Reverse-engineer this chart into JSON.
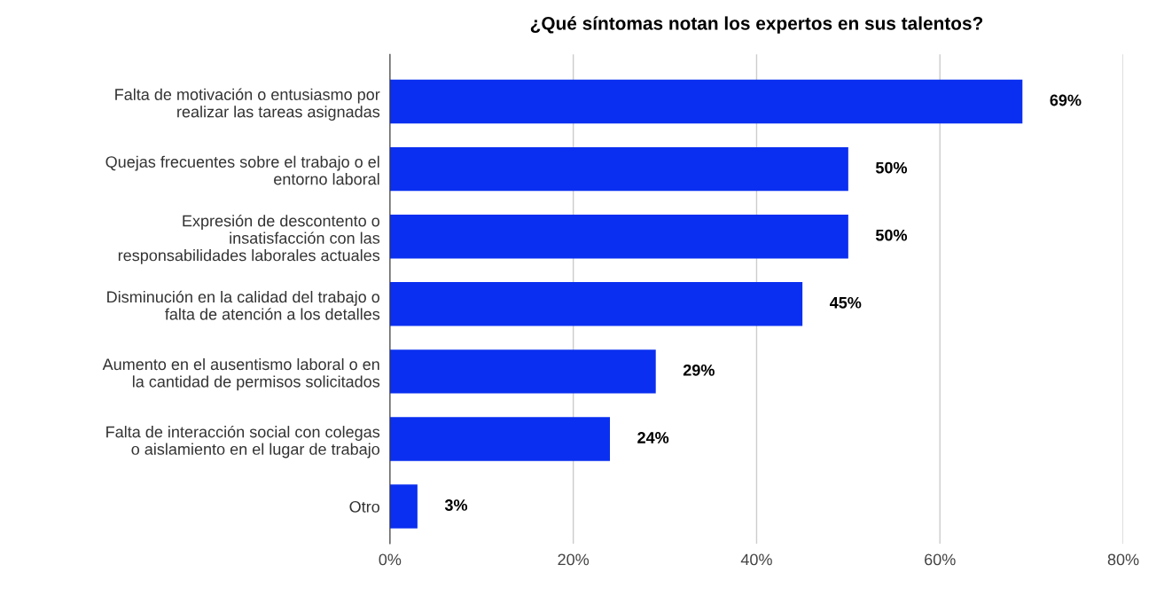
{
  "chart_data": {
    "type": "bar",
    "orientation": "horizontal",
    "title": "¿Qué síntomas notan los expertos en sus talentos?",
    "categories": [
      "Falta de motivación o entusiasmo por\nrealizar las tareas asignadas",
      "Quejas frecuentes sobre el trabajo o el\nentorno laboral",
      "Expresión de descontento o\ninsatisfacción con las\nresponsabilidades laborales actuales",
      "Disminución en la calidad del trabajo o\nfalta de atención a los detalles",
      "Aumento en el ausentismo laboral o en\nla cantidad de permisos solicitados",
      "Falta de interacción social con colegas\no aislamiento en el lugar de trabajo",
      "Otro"
    ],
    "values": [
      69,
      50,
      50,
      45,
      29,
      24,
      3
    ],
    "value_labels": [
      "69%",
      "50%",
      "50%",
      "45%",
      "29%",
      "24%",
      "3%"
    ],
    "color": "#0a2ff0",
    "xlim": [
      0,
      80
    ],
    "xticks": [
      {
        "value": 0,
        "label": "0%"
      },
      {
        "value": 20,
        "label": "20%"
      },
      {
        "value": 40,
        "label": "40%"
      },
      {
        "value": 60,
        "label": "60%"
      },
      {
        "value": 80,
        "label": "80%"
      }
    ],
    "grid": "x",
    "legend": false
  }
}
